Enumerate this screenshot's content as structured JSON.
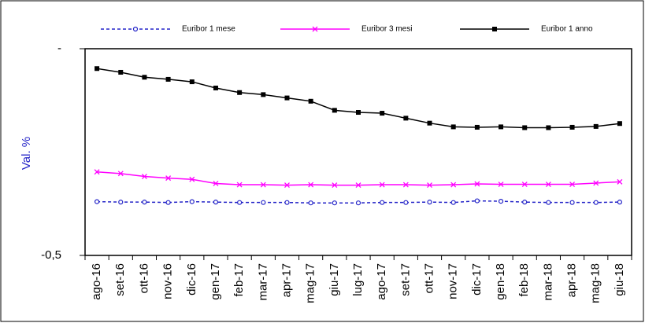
{
  "chart_data": {
    "type": "line",
    "y_label": "Val. %",
    "categories": [
      "ago-16",
      "set-16",
      "ott-16",
      "nov-16",
      "dic-16",
      "gen-17",
      "feb-17",
      "mar-17",
      "apr-17",
      "mag-17",
      "giu-17",
      "lug-17",
      "ago-17",
      "set-17",
      "ott-17",
      "nov-17",
      "dic-17",
      "gen-18",
      "feb-18",
      "mar-18",
      "apr-18",
      "mag-18",
      "giu-18"
    ],
    "series": [
      {
        "name": "Euribor 1 mese",
        "color": "#2424c8",
        "marker": "circle",
        "dash": true,
        "values": [
          -0.37,
          -0.371,
          -0.371,
          -0.372,
          -0.37,
          -0.371,
          -0.372,
          -0.372,
          -0.372,
          -0.373,
          -0.373,
          -0.373,
          -0.372,
          -0.372,
          -0.371,
          -0.372,
          -0.368,
          -0.369,
          -0.371,
          -0.372,
          -0.372,
          -0.372,
          -0.371
        ]
      },
      {
        "name": "Euribor 3 mesi",
        "color": "#ff00ff",
        "marker": "x",
        "dash": false,
        "values": [
          -0.298,
          -0.302,
          -0.309,
          -0.313,
          -0.316,
          -0.326,
          -0.329,
          -0.329,
          -0.33,
          -0.329,
          -0.33,
          -0.33,
          -0.329,
          -0.329,
          -0.33,
          -0.329,
          -0.327,
          -0.328,
          -0.328,
          -0.328,
          -0.328,
          -0.325,
          -0.322
        ]
      },
      {
        "name": "Euribor 1 anno",
        "color": "#000000",
        "marker": "square",
        "dash": false,
        "values": [
          -0.048,
          -0.057,
          -0.069,
          -0.074,
          -0.08,
          -0.095,
          -0.106,
          -0.111,
          -0.119,
          -0.127,
          -0.149,
          -0.154,
          -0.156,
          -0.168,
          -0.18,
          -0.189,
          -0.19,
          -0.189,
          -0.191,
          -0.191,
          -0.19,
          -0.188,
          -0.181
        ]
      }
    ],
    "ylim": [
      -0.5,
      0
    ],
    "yticks": [
      {
        "value": -0.5,
        "label": "-0,5"
      },
      {
        "value": 0,
        "label": "-"
      }
    ],
    "grid": false,
    "legend": "top"
  }
}
